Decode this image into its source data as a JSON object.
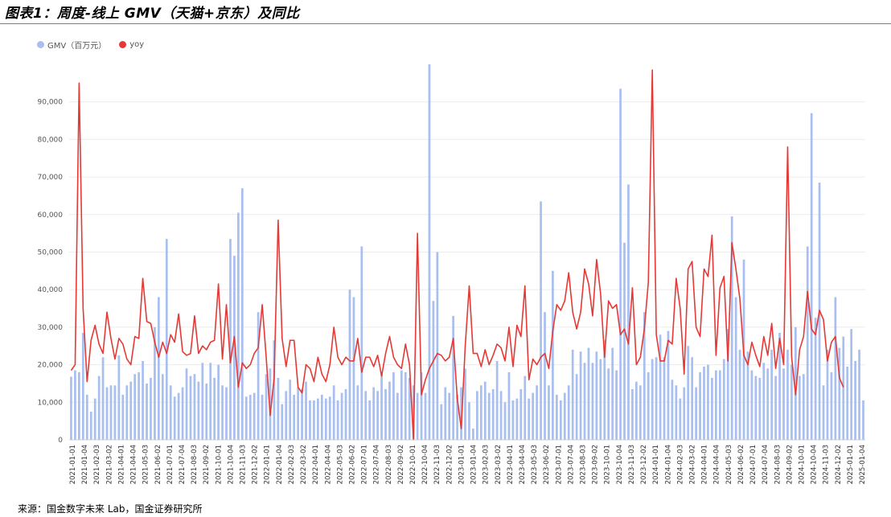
{
  "title": "图表1：周度-线上 GMV（天猫+京东）及同比",
  "source": "来源：国金数字未来 Lab，国金证券研究所",
  "chart_data": {
    "type": "bar",
    "legend": [
      {
        "label": "GMV（百万元）",
        "color": "#a8bff0",
        "shape": "circle"
      },
      {
        "label": "yoy",
        "color": "#e53935",
        "shape": "circle"
      }
    ],
    "ylim": [
      0,
      100000
    ],
    "yticks": [
      0,
      10000,
      20000,
      30000,
      40000,
      50000,
      60000,
      70000,
      80000,
      90000
    ],
    "ytick_labels": [
      "0",
      "10,000",
      "20,000",
      "30,000",
      "40,000",
      "50,000",
      "60,000",
      "70,000",
      "80,000",
      "90,000"
    ],
    "x_tick_labels": [
      "2021-01-01",
      "2021-01-04",
      "2021-02-03",
      "2021-03-02",
      "2021-04-01",
      "2021-04-04",
      "2021-05-03",
      "2021-06-02",
      "2021-07-01",
      "2021-07-04",
      "2021-08-03",
      "2021-09-02",
      "2021-10-01",
      "2021-10-04",
      "2021-11-03",
      "2021-12-02",
      "2022-01-01",
      "2022-01-04",
      "2022-02-03",
      "2022-03-02",
      "2022-04-01",
      "2022-04-04",
      "2022-05-03",
      "2022-06-02",
      "2022-07-01",
      "2022-07-04",
      "2022-08-03",
      "2022-09-02",
      "2022-10-01",
      "2022-10-04",
      "2022-11-03",
      "2022-12-02",
      "2023-01-01",
      "2023-01-04",
      "2023-02-03",
      "2023-03-02",
      "2023-04-01",
      "2023-04-04",
      "2023-05-03",
      "2023-06-02",
      "2023-07-01",
      "2023-07-04",
      "2023-08-03",
      "2023-09-02",
      "2023-10-01",
      "2023-10-04",
      "2023-11-03",
      "2023-12-02",
      "2024-01-01",
      "2024-01-04",
      "2024-02-03",
      "2024-03-02",
      "2024-04-01",
      "2024-04-04",
      "2024-05-03",
      "2024-06-02",
      "2024-07-01",
      "2024-07-04",
      "2024-08-03",
      "2024-09-02",
      "2024-10-01",
      "2024-10-04",
      "2024-11-03",
      "2024-12-02",
      "2025-01-01",
      "2025-01-04"
    ],
    "series": [
      {
        "name": "GMV（百万元）",
        "type": "bar",
        "values": [
          16800,
          18500,
          18000,
          28500,
          12000,
          7500,
          11000,
          17000,
          22000,
          14000,
          14500,
          14500,
          22500,
          12000,
          14500,
          15500,
          17500,
          18000,
          21000,
          15000,
          16500,
          30000,
          38000,
          17500,
          53500,
          14500,
          11500,
          12500,
          14000,
          19000,
          17000,
          17500,
          15500,
          20500,
          15000,
          20500,
          16500,
          20000,
          14500,
          14000,
          53500,
          49000,
          60500,
          67000,
          11500,
          12000,
          12500,
          34000,
          12000,
          17500,
          19000,
          26500,
          16500,
          9500,
          13000,
          16000,
          12000,
          14000,
          13500,
          15500,
          10500,
          10500,
          11000,
          12000,
          11000,
          11500,
          14500,
          10500,
          12500,
          13500,
          40000,
          38000,
          14500,
          51500,
          13000,
          10500,
          14000,
          13000,
          17500,
          13500,
          15500,
          18000,
          12500,
          18500,
          18000,
          16500,
          14500,
          12500,
          18000,
          12500,
          100000,
          37000,
          50000,
          9500,
          14000,
          12500,
          33000,
          12000,
          14000,
          19000,
          10000,
          3000,
          13000,
          14500,
          15500,
          12500,
          13500,
          21000,
          13000,
          10000,
          18000,
          10500,
          11000,
          13500,
          17000,
          11000,
          12500,
          14500,
          63500,
          34000,
          14500,
          45000,
          12000,
          10500,
          12500,
          14500,
          24000,
          17500,
          23500,
          20500,
          24500,
          20500,
          23500,
          21500,
          26500,
          19000,
          24500,
          18500,
          93500,
          52500,
          68000,
          13500,
          15500,
          14500,
          34000,
          18000,
          21500,
          22000,
          28000,
          22000,
          29000,
          16000,
          14500,
          11000,
          14000,
          25000,
          22000,
          14000,
          18000,
          19500,
          20000,
          16500,
          18500,
          18500,
          21500,
          29500,
          59500,
          38000,
          24000,
          48000,
          23500,
          18500,
          17000,
          16500,
          20500,
          19000,
          24000,
          17000,
          28500,
          19000,
          24000,
          20000,
          30000,
          17000,
          17500,
          51500,
          87000,
          32500,
          68500,
          14500,
          24000,
          18000,
          38000,
          24500,
          27500,
          19500,
          29500,
          21000,
          24000,
          10500
        ]
      },
      {
        "name": "yoy",
        "type": "line",
        "values": [
          18500,
          20000,
          95000,
          35000,
          15500,
          26500,
          30500,
          25500,
          23000,
          34000,
          27000,
          21500,
          27000,
          25500,
          21500,
          20000,
          27500,
          27000,
          43000,
          31500,
          31000,
          26000,
          22000,
          26000,
          23000,
          28000,
          26000,
          33500,
          23500,
          22500,
          23000,
          33000,
          23000,
          25000,
          24000,
          26000,
          26500,
          41500,
          21500,
          36000,
          20500,
          27500,
          14000,
          20500,
          19000,
          20000,
          23000,
          24500,
          36000,
          22000,
          6500,
          16500,
          58500,
          27000,
          19500,
          26500,
          26500,
          14000,
          12500,
          20000,
          19000,
          15500,
          22000,
          17500,
          15500,
          20000,
          30000,
          22000,
          20000,
          22000,
          21000,
          21000,
          27000,
          18000,
          22000,
          22000,
          19500,
          22500,
          17000,
          23000,
          27500,
          22000,
          20000,
          19000,
          25500,
          20000,
          0,
          55000,
          12000,
          16000,
          19000,
          21000,
          23000,
          22500,
          21000,
          22000,
          27000,
          11000,
          3000,
          25000,
          41000,
          23000,
          23000,
          19500,
          24000,
          20000,
          22500,
          25500,
          24500,
          21000,
          30000,
          19500,
          30500,
          27500,
          41000,
          16000,
          21500,
          20000,
          22000,
          23000,
          19000,
          29000,
          36000,
          34500,
          37000,
          44500,
          34000,
          29500,
          34000,
          45500,
          41500,
          33000,
          48000,
          39000,
          22000,
          37000,
          35000,
          36000,
          28000,
          29500,
          25500,
          40500,
          20000,
          22000,
          29500,
          42000,
          98500,
          28000,
          21000,
          21000,
          26500,
          25500,
          43000,
          35000,
          17500,
          45500,
          47500,
          30000,
          27500,
          45500,
          43500,
          54500,
          22500,
          40500,
          43500,
          21000,
          52500,
          45500,
          37500,
          22500,
          20000,
          26000,
          22500,
          19500,
          27500,
          22500,
          31000,
          19000,
          27000,
          20000,
          78000,
          22000,
          12000,
          24000,
          27500,
          39500,
          29500,
          28000,
          34500,
          32000,
          21000,
          26000,
          27500,
          16500,
          14000
        ]
      }
    ]
  }
}
